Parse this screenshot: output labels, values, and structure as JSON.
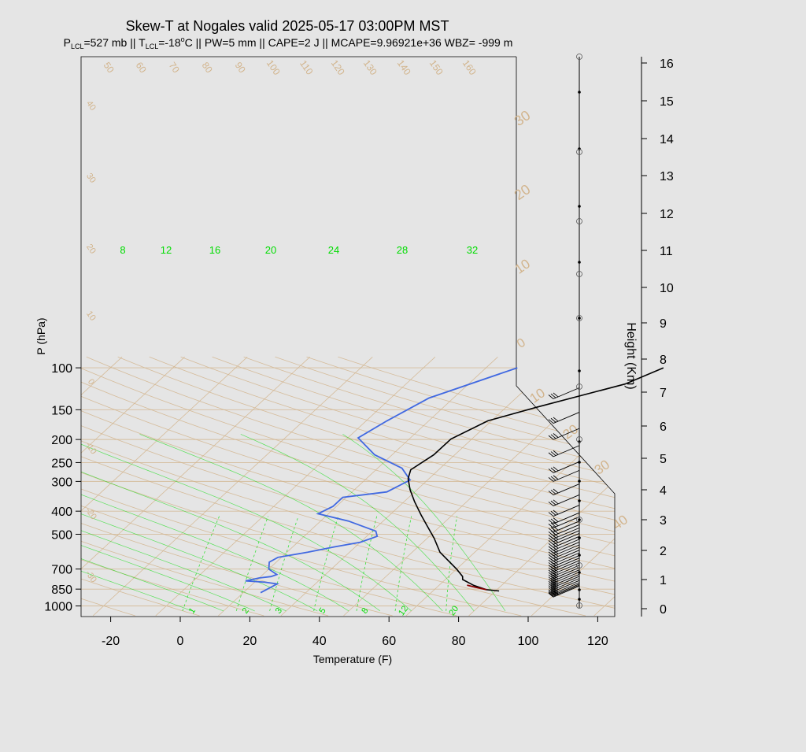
{
  "chart_data": {
    "type": "line",
    "title": "Skew-T at Nogales valid 2025-05-17 03:00PM MST",
    "subtitle": {
      "plcl_pre": "P",
      "plcl_sub": "LCL",
      "plcl_post": "=527 mb || T",
      "tlcl_sub": "LCL",
      "tlcl_post": "=-18",
      "deg": "o",
      "rest": "C || PW=5 mm || CAPE=2 J || MCAPE=9.96921e+36 WBZ= -999 m"
    },
    "xlabel": "Temperature (F)",
    "ylabel": "P (hPa)",
    "y2label": "Height (Km)",
    "colors": {
      "temperature": "#000000",
      "dewpoint": "#4169e1",
      "parcel": "#8b0000",
      "grid": "#d2b48c",
      "mixing": "#00dd00",
      "subtitle": "#a0522d",
      "wind": "#000000"
    },
    "xlim": [
      -28,
      125
    ],
    "ylim": [
      1050,
      100
    ],
    "x_ticks": [
      "-20",
      "0",
      "20",
      "40",
      "60",
      "80",
      "100",
      "120"
    ],
    "p_ticks": [
      "100",
      "150",
      "200",
      "250",
      "300",
      "400",
      "500",
      "700",
      "850",
      "1000"
    ],
    "height_ticks": [
      "0",
      "1",
      "2",
      "3",
      "4",
      "5",
      "6",
      "7",
      "8",
      "9",
      "10",
      "11",
      "12",
      "13",
      "14",
      "15",
      "16"
    ],
    "isotherm_labels_upper": [
      "50",
      "60",
      "70",
      "80",
      "90",
      "100",
      "110",
      "120",
      "130",
      "140",
      "150",
      "160"
    ],
    "isotherm_labels_left": [
      "40",
      "30",
      "20",
      "10",
      "0",
      "-10",
      "-20",
      "-30"
    ],
    "isotherm_labels_right": [
      "30",
      "20",
      "10",
      "0",
      "10",
      "20",
      "30",
      "40"
    ],
    "dry_adiabat_labels": [
      "8",
      "12",
      "16",
      "20",
      "24",
      "28",
      "32"
    ],
    "mixing_ratio_labels": [
      "1",
      "2",
      "3",
      "5",
      "8",
      "12",
      "20"
    ],
    "temperature_profile": [
      {
        "T": 87,
        "p": 865
      },
      {
        "T": 83,
        "p": 855
      },
      {
        "T": 78,
        "p": 820
      },
      {
        "T": 73,
        "p": 775
      },
      {
        "T": 72,
        "p": 752
      },
      {
        "T": 68,
        "p": 700
      },
      {
        "T": 58,
        "p": 595
      },
      {
        "T": 52,
        "p": 520
      },
      {
        "T": 46,
        "p": 460
      },
      {
        "T": 41,
        "p": 415
      },
      {
        "T": 35,
        "p": 365
      },
      {
        "T": 30,
        "p": 325
      },
      {
        "T": 26,
        "p": 292
      },
      {
        "T": 24,
        "p": 268
      },
      {
        "T": 26,
        "p": 232
      },
      {
        "T": 26,
        "p": 199
      },
      {
        "T": 31,
        "p": 167
      },
      {
        "T": 41,
        "p": 146
      },
      {
        "T": 59,
        "p": 117
      },
      {
        "T": 65,
        "p": 100
      }
    ],
    "parcel_profile": [
      {
        "T": 83,
        "p": 855
      },
      {
        "T": 79,
        "p": 835
      },
      {
        "T": 76,
        "p": 818
      }
    ],
    "dewpoint_profile": [
      {
        "T": 19,
        "p": 880
      },
      {
        "T": 21,
        "p": 808
      },
      {
        "T": 17,
        "p": 795
      },
      {
        "T": 11,
        "p": 785
      },
      {
        "T": 14,
        "p": 763
      },
      {
        "T": 17,
        "p": 753
      },
      {
        "T": 18,
        "p": 738
      },
      {
        "T": 14,
        "p": 700
      },
      {
        "T": 12,
        "p": 655
      },
      {
        "T": 13,
        "p": 625
      },
      {
        "T": 20,
        "p": 595
      },
      {
        "T": 26,
        "p": 565
      },
      {
        "T": 32,
        "p": 540
      },
      {
        "T": 35,
        "p": 510
      },
      {
        "T": 33,
        "p": 485
      },
      {
        "T": 22,
        "p": 440
      },
      {
        "T": 11,
        "p": 410
      },
      {
        "T": 13,
        "p": 382
      },
      {
        "T": 13,
        "p": 350
      },
      {
        "T": 24,
        "p": 332
      },
      {
        "T": 27,
        "p": 296
      },
      {
        "T": 21,
        "p": 264
      },
      {
        "T": 9,
        "p": 232
      },
      {
        "T": -1,
        "p": 197
      },
      {
        "T": 2,
        "p": 167
      },
      {
        "T": 7,
        "p": 134
      },
      {
        "T": 23,
        "p": 100
      }
    ],
    "wind_profile": [
      {
        "p": 135
      },
      {
        "p": 171
      },
      {
        "p": 200
      },
      {
        "p": 236
      },
      {
        "p": 276
      },
      {
        "p": 300
      },
      {
        "p": 342
      },
      {
        "p": 380
      },
      {
        "p": 420
      },
      {
        "p": 452
      },
      {
        "p": 470
      },
      {
        "p": 490
      },
      {
        "p": 507
      },
      {
        "p": 523
      },
      {
        "p": 537
      },
      {
        "p": 552
      },
      {
        "p": 568
      },
      {
        "p": 584
      },
      {
        "p": 600
      },
      {
        "p": 616
      },
      {
        "p": 632
      },
      {
        "p": 649
      },
      {
        "p": 666
      },
      {
        "p": 683
      },
      {
        "p": 700
      },
      {
        "p": 717
      },
      {
        "p": 734
      },
      {
        "p": 751
      },
      {
        "p": 768
      },
      {
        "p": 785
      },
      {
        "p": 802
      },
      {
        "p": 819
      },
      {
        "p": 836
      },
      {
        "p": 853
      },
      {
        "p": 870
      },
      {
        "p": 887
      },
      {
        "p": 900
      },
      {
        "p": 910
      },
      {
        "p": 918
      }
    ]
  }
}
